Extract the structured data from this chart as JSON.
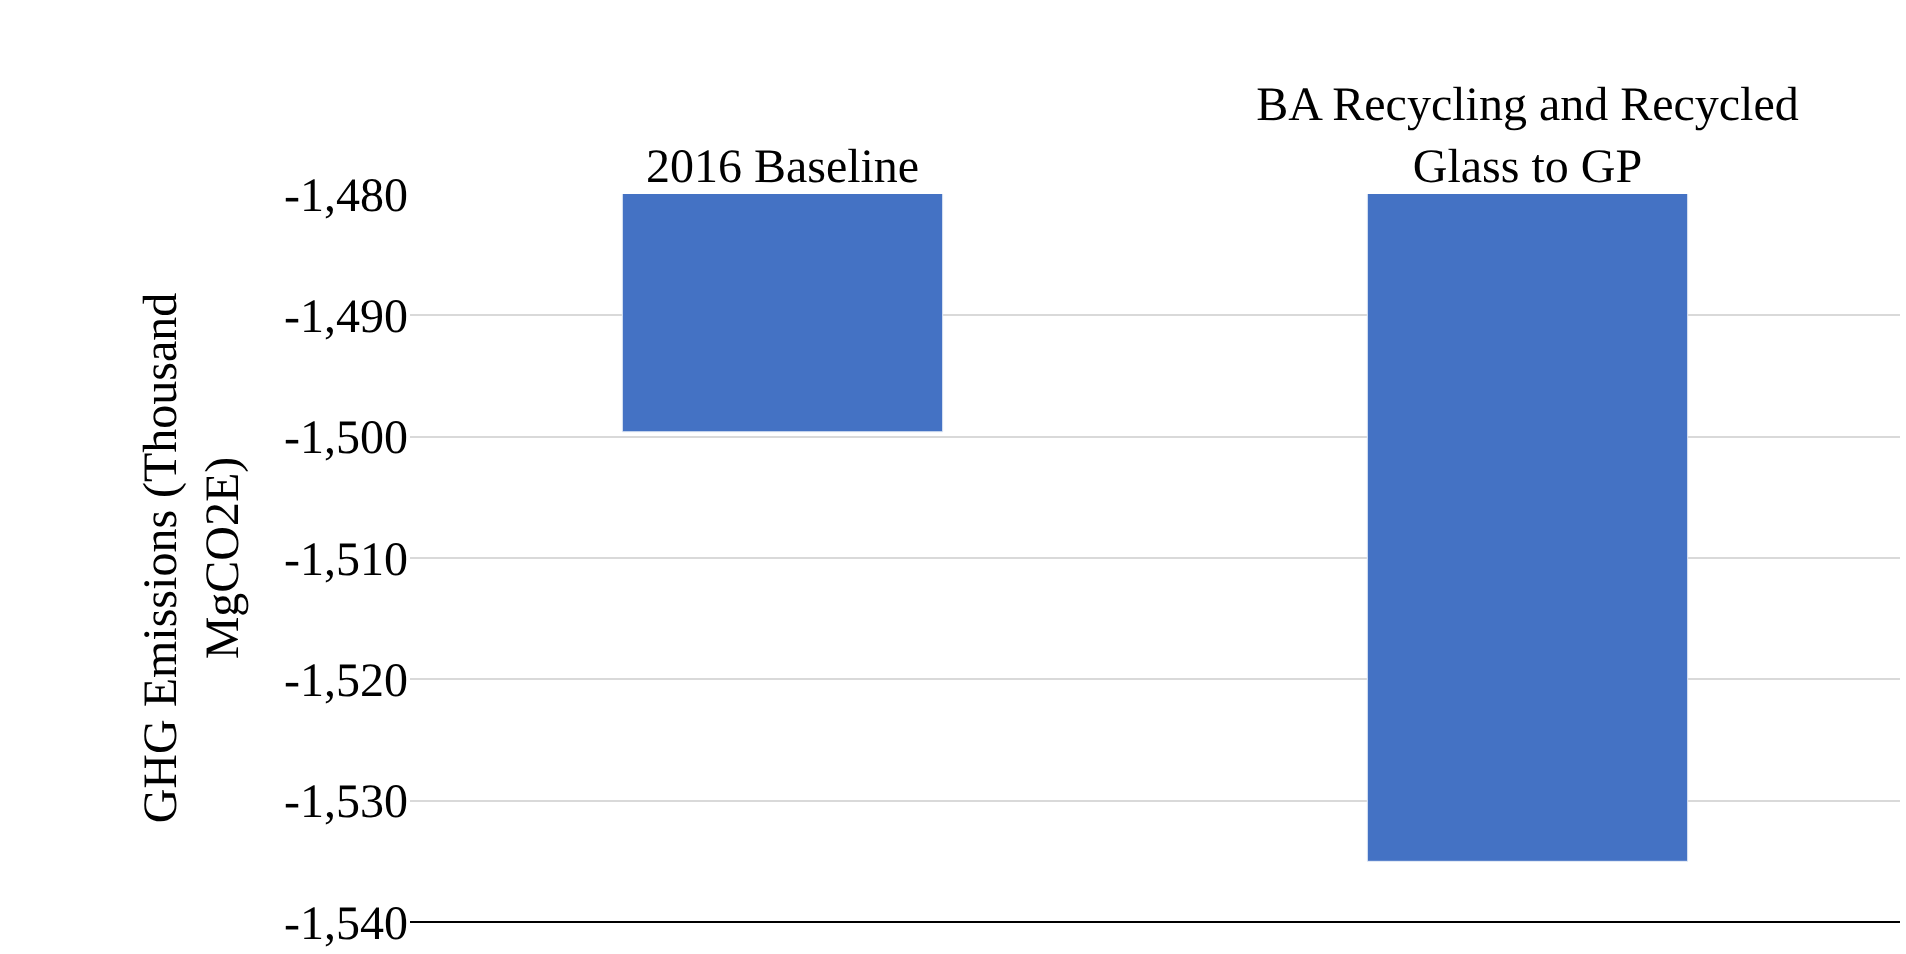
{
  "chart_data": {
    "type": "bar",
    "ylabel": "GHG Emissions (Thousand MgCO2E)",
    "categories": [
      "2016 Baseline",
      "BA Recycling and Recycled Glass to GP"
    ],
    "values": [
      -1499.6,
      -1535
    ],
    "color": "#4472c4",
    "ylim": [
      -1540,
      -1480
    ],
    "yticks": [
      {
        "value": -1540,
        "label": "-1,540"
      },
      {
        "value": -1530,
        "label": "-1,530"
      },
      {
        "value": -1520,
        "label": "-1,520"
      },
      {
        "value": -1510,
        "label": "-1,510"
      },
      {
        "value": -1500,
        "label": "-1,500"
      },
      {
        "value": -1490,
        "label": "-1,490"
      },
      {
        "value": -1480,
        "label": "-1,480"
      }
    ],
    "grid": "y"
  }
}
